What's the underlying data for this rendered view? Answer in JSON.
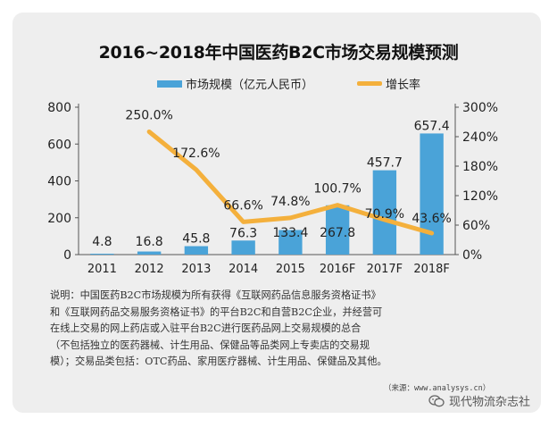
{
  "title": "2016~2018年中国医药B2C市场交易规模预测",
  "chart_data": {
    "type": "bar",
    "categories": [
      "2011",
      "2012",
      "2013",
      "2014",
      "2015",
      "2016F",
      "2017F",
      "2018F"
    ],
    "series": [
      {
        "name": "市场规模（亿元人民币）",
        "type": "bar",
        "axis": "left",
        "values": [
          4.8,
          16.8,
          45.8,
          76.3,
          133.4,
          267.8,
          457.7,
          657.4
        ],
        "labels": [
          "4.8",
          "16.8",
          "45.8",
          "76.3",
          "133.4",
          "267.8",
          "457.7",
          "657.4"
        ],
        "color": "#4aa3d8"
      },
      {
        "name": "增长率",
        "type": "line",
        "axis": "right",
        "values": [
          null,
          250.0,
          172.6,
          66.6,
          74.8,
          100.7,
          70.9,
          43.6
        ],
        "labels": [
          "",
          "250.0%",
          "172.6%",
          "66.6%",
          "74.8%",
          "100.7%",
          "70.9%",
          "43.6%"
        ],
        "color": "#f4b03c"
      }
    ],
    "ylim_left": [
      0,
      800
    ],
    "yticks_left": [
      "0",
      "200",
      "400",
      "600",
      "800"
    ],
    "ylim_right": [
      0,
      300
    ],
    "yticks_right": [
      "0%",
      "60%",
      "120%",
      "180%",
      "240%",
      "300%"
    ],
    "grid": false,
    "legend_position": "top"
  },
  "note": {
    "lines": [
      "说明：中国医药B2C市场规模为所有获得《互联网药品信息服务资格证书》",
      "和《互联网药品交易服务资格证书》的平台B2C和自营B2C企业，并经营可",
      "在线上交易的网上药店或入驻平台B2C进行医药品网上交易规模的总合",
      "（不包括独立的医药器械、计生用品、保健品等品类网上专卖店的交易规",
      "模）；交易品类包括：OTC药品、家用医疗器械、计生用品、保健品及其他。"
    ]
  },
  "source": "（来源：www.analysys.cn）",
  "watermark": {
    "icon": "wechat-icon",
    "text": "现代物流杂志社"
  }
}
